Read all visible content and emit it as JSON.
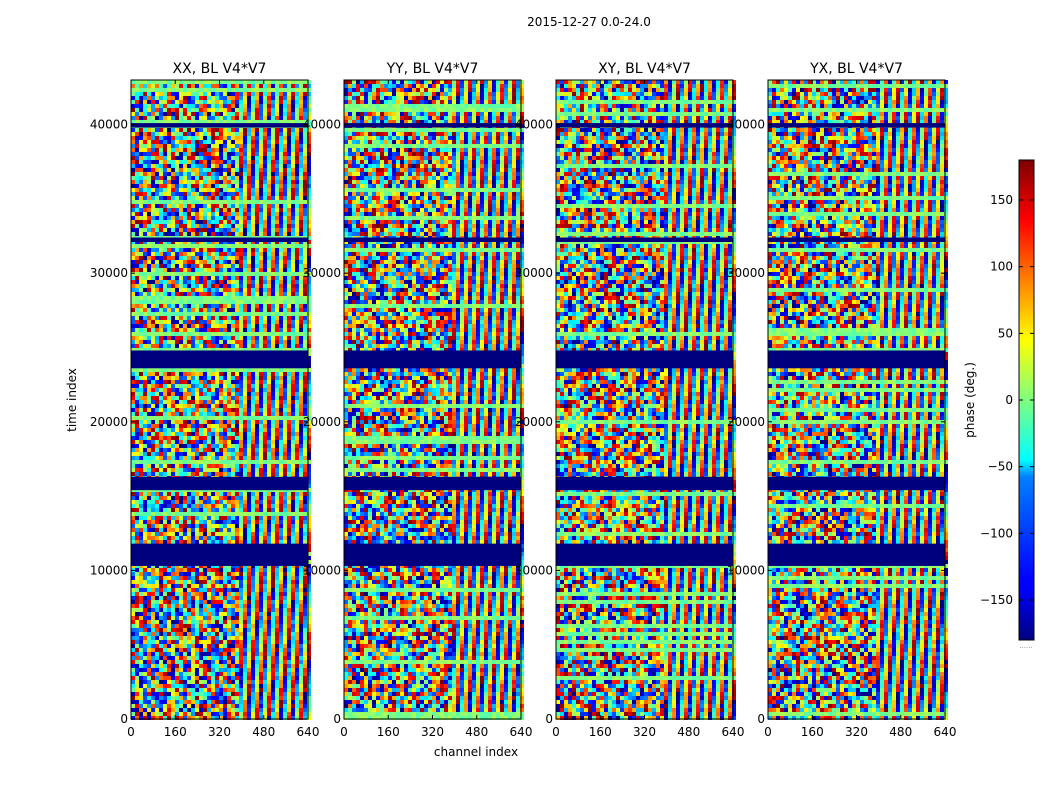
{
  "chart_data": {
    "type": "heatmap",
    "title": "2015-12-27 0.0-24.0",
    "xlabel": "channel index",
    "ylabel": "time index",
    "xlim": [
      0,
      640
    ],
    "ylim": [
      0,
      43000
    ],
    "xticks": [
      0,
      160,
      320,
      480,
      640
    ],
    "yticks": [
      0,
      10000,
      20000,
      30000,
      40000
    ],
    "panels": [
      {
        "title": "XX, BL V4*V7",
        "polarization": "XX"
      },
      {
        "title": "YY, BL V4*V7",
        "polarization": "YY"
      },
      {
        "title": "XY, BL V4*V7",
        "polarization": "XY"
      },
      {
        "title": "YX, BL V4*V7",
        "polarization": "YX"
      }
    ],
    "flagged_time_ranges": [
      [
        10300,
        11800
      ],
      [
        15400,
        16300
      ],
      [
        23600,
        24800
      ],
      [
        32100,
        32400
      ],
      [
        39800,
        40100
      ]
    ],
    "phase_wrap_start_channel": 380,
    "colorbar": {
      "label": "phase (deg.)",
      "range": [
        -180,
        180
      ],
      "ticks": [
        -150,
        -100,
        -50,
        0,
        50,
        100,
        150
      ],
      "colormap": "jet",
      "extra_label": "......"
    }
  }
}
